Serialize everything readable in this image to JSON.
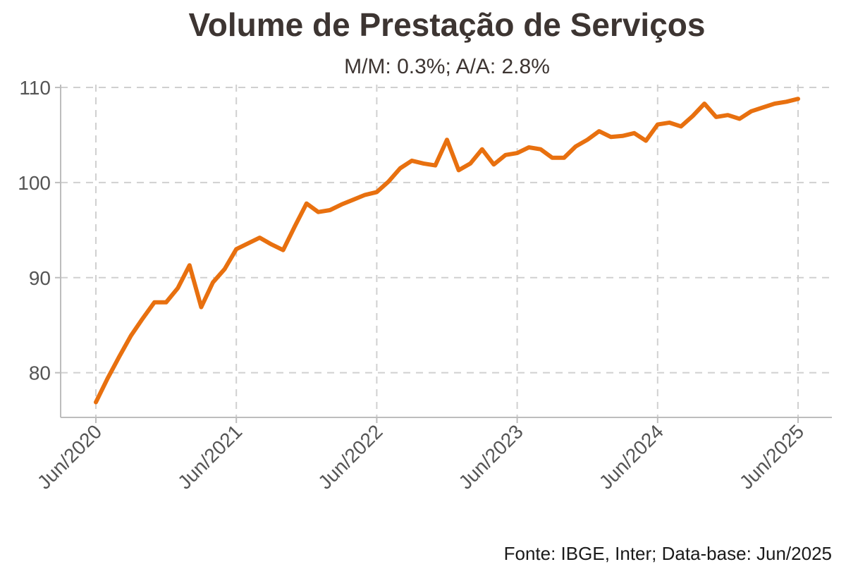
{
  "title": "Volume de Prestação de Serviços",
  "subtitle": "M/M: 0.3%; A/A: 2.8%",
  "source": "Fonte: IBGE, Inter; Data-base: Jun/2025",
  "colors": {
    "line": "#e8700f",
    "grid": "#d0d0d0",
    "axis": "#bdbdbd",
    "text": "#555555",
    "title": "#3d3532"
  },
  "chart_data": {
    "type": "line",
    "title": "Volume de Prestação de Serviços",
    "subtitle": "M/M: 0.3%; A/A: 2.8%",
    "xlabel": "",
    "ylabel": "",
    "x_ticks": [
      "Jun/2020",
      "Jun/2021",
      "Jun/2022",
      "Jun/2023",
      "Jun/2024",
      "Jun/2025"
    ],
    "y_ticks": [
      80,
      90,
      100,
      110
    ],
    "ylim": [
      75.3,
      110.3
    ],
    "grid": true,
    "legend": "none",
    "x_start": "Jun/2020",
    "series": [
      {
        "values": [
          76.9,
          79.4,
          81.7,
          83.9,
          85.7,
          87.4,
          87.4,
          88.9,
          91.3,
          86.9,
          89.5,
          90.9,
          93.0,
          93.6,
          94.2,
          93.5,
          92.9,
          95.4,
          97.8,
          96.9,
          97.1,
          97.7,
          98.2,
          98.7,
          99.0,
          100.1,
          101.5,
          102.3,
          102.0,
          101.8,
          104.5,
          101.3,
          102.0,
          103.5,
          101.9,
          102.9,
          103.1,
          103.7,
          103.5,
          102.6,
          102.6,
          103.8,
          104.5,
          105.4,
          104.8,
          104.9,
          105.2,
          104.4,
          106.1,
          106.3,
          105.9,
          107.0,
          108.3,
          106.9,
          107.1,
          106.7,
          107.5,
          107.9,
          108.3,
          108.5,
          108.8
        ]
      }
    ]
  }
}
